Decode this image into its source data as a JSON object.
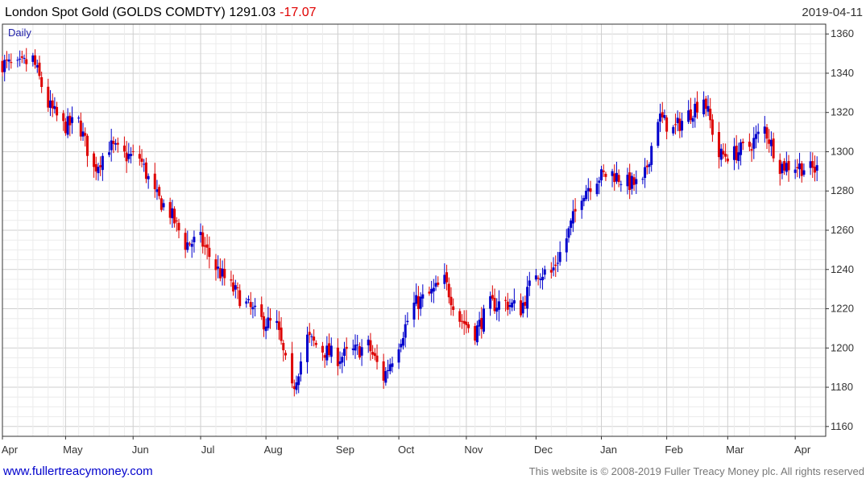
{
  "header": {
    "title": "London Spot Gold (GOLDS COMDTY) 1291.03",
    "change": "-17.07",
    "change_color": "#e00000",
    "date": "2019-04-11"
  },
  "chart_data": {
    "type": "candlestick",
    "period_label": "Daily",
    "ylim": [
      1155,
      1365
    ],
    "y_ticks": [
      1160,
      1180,
      1200,
      1220,
      1240,
      1260,
      1280,
      1300,
      1320,
      1340,
      1360
    ],
    "x_labels": [
      "Apr",
      "May",
      "Jun",
      "Jul",
      "Aug",
      "Sep",
      "Oct",
      "Nov",
      "Dec",
      "Jan",
      "Feb",
      "Mar",
      "Apr"
    ],
    "x_start": "2018-04-02",
    "grid": true,
    "axis_side": "right",
    "up_color": "#0000cc",
    "down_color": "#dd0000",
    "approx_closes": [
      [
        "2018-04-02",
        1345
      ],
      [
        "2018-04-09",
        1343
      ],
      [
        "2018-04-16",
        1347
      ],
      [
        "2018-04-23",
        1324
      ],
      [
        "2018-04-30",
        1313
      ],
      [
        "2018-05-07",
        1315
      ],
      [
        "2018-05-14",
        1291
      ],
      [
        "2018-05-21",
        1303
      ],
      [
        "2018-05-28",
        1298
      ],
      [
        "2018-06-04",
        1297
      ],
      [
        "2018-06-11",
        1278
      ],
      [
        "2018-06-18",
        1269
      ],
      [
        "2018-06-25",
        1253
      ],
      [
        "2018-07-02",
        1255
      ],
      [
        "2018-07-09",
        1241
      ],
      [
        "2018-07-16",
        1231
      ],
      [
        "2018-07-23",
        1222
      ],
      [
        "2018-07-30",
        1214
      ],
      [
        "2018-08-06",
        1211
      ],
      [
        "2018-08-13",
        1178
      ],
      [
        "2018-08-20",
        1205
      ],
      [
        "2018-08-27",
        1199
      ],
      [
        "2018-09-03",
        1195
      ],
      [
        "2018-09-10",
        1198
      ],
      [
        "2018-09-17",
        1201
      ],
      [
        "2018-09-24",
        1185
      ],
      [
        "2018-10-01",
        1203
      ],
      [
        "2018-10-08",
        1222
      ],
      [
        "2018-10-15",
        1227
      ],
      [
        "2018-10-22",
        1234
      ],
      [
        "2018-10-29",
        1215
      ],
      [
        "2018-11-05",
        1208
      ],
      [
        "2018-11-12",
        1222
      ],
      [
        "2018-11-19",
        1223
      ],
      [
        "2018-11-26",
        1220
      ],
      [
        "2018-12-03",
        1239
      ],
      [
        "2018-12-10",
        1238
      ],
      [
        "2018-12-17",
        1256
      ],
      [
        "2018-12-24",
        1279
      ],
      [
        "2018-12-31",
        1287
      ],
      [
        "2019-01-07",
        1289
      ],
      [
        "2019-01-14",
        1284
      ],
      [
        "2019-01-21",
        1283
      ],
      [
        "2019-01-28",
        1318
      ],
      [
        "2019-02-04",
        1311
      ],
      [
        "2019-02-11",
        1319
      ],
      [
        "2019-02-18",
        1328
      ],
      [
        "2019-02-25",
        1298
      ],
      [
        "2019-03-04",
        1299
      ],
      [
        "2019-03-11",
        1303
      ],
      [
        "2019-03-18",
        1312
      ],
      [
        "2019-03-25",
        1293
      ],
      [
        "2019-04-01",
        1293
      ],
      [
        "2019-04-08",
        1291
      ]
    ]
  },
  "footer": {
    "left_link": "www.fullertreacymoney.com",
    "left_color": "#0000cc",
    "right_text": "This website is © 2008-2019 Fuller Treacy Money plc. All rights reserved"
  }
}
